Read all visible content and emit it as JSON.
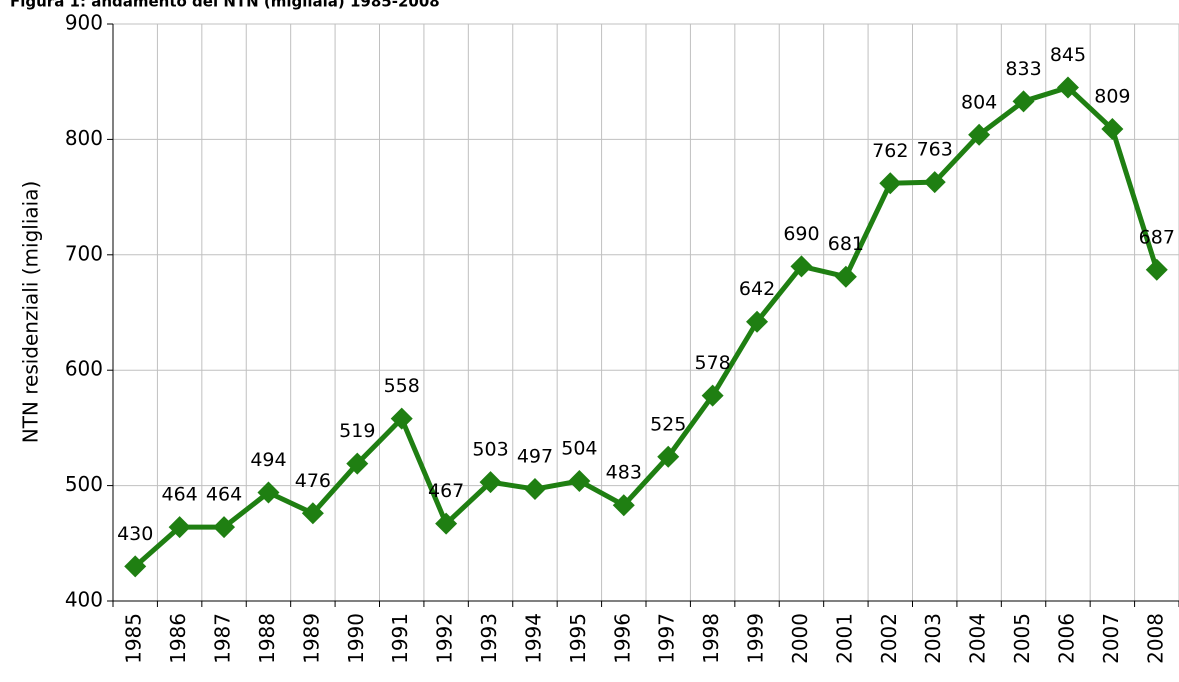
{
  "chart_data": {
    "type": "line",
    "title": "Figura 1: andamento del NTN (migliaia) 1985-2008",
    "y_label": "NTN residenziali (migliaia)",
    "categories": [
      "1985",
      "1986",
      "1987",
      "1988",
      "1989",
      "1990",
      "1991",
      "1992",
      "1993",
      "1994",
      "1995",
      "1996",
      "1997",
      "1998",
      "1999",
      "2000",
      "2001",
      "2002",
      "2003",
      "2004",
      "2005",
      "2006",
      "2007",
      "2008"
    ],
    "values": [
      430,
      464,
      464,
      494,
      476,
      519,
      558,
      467,
      503,
      497,
      504,
      483,
      525,
      578,
      642,
      690,
      681,
      762,
      763,
      804,
      833,
      845,
      809,
      687
    ],
    "color": "#1f7f12",
    "ylim": [
      400,
      900
    ],
    "yticks": [
      400,
      500,
      600,
      700,
      800,
      900
    ],
    "grid": true
  }
}
